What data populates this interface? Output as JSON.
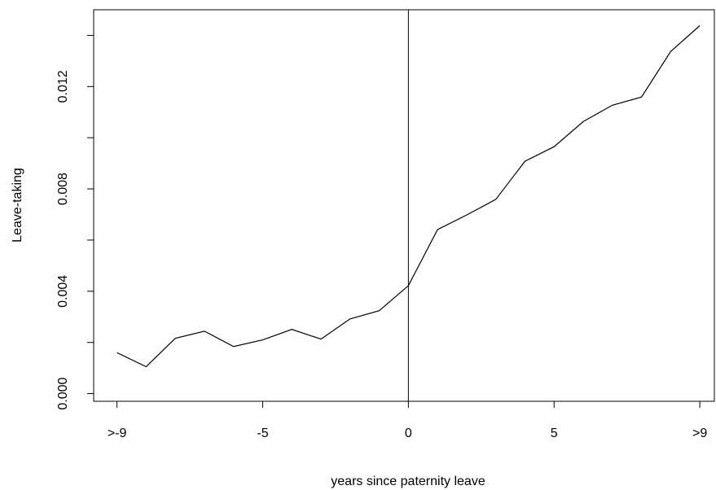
{
  "chart_data": {
    "type": "line",
    "x_label": "years since paternity leave",
    "y_label": "Leave-taking",
    "x": [
      -10,
      -9,
      -8,
      -7,
      -6,
      -5,
      -4,
      -3,
      -2,
      -1,
      0,
      1,
      2,
      3,
      4,
      5,
      6,
      7,
      8,
      9,
      10
    ],
    "values": [
      0.0016,
      0.00105,
      0.00216,
      0.00244,
      0.00184,
      0.0021,
      0.00251,
      0.00213,
      0.00292,
      0.00324,
      0.00422,
      0.00641,
      0.00698,
      0.00759,
      0.00908,
      0.00965,
      0.01063,
      0.01127,
      0.01159,
      0.01337,
      0.01438
    ],
    "color": "#000000",
    "xlim": [
      -10.8,
      10.5
    ],
    "ylim": [
      -0.0003,
      0.015
    ],
    "xticks": [
      {
        "value": -10,
        "label": ">-9"
      },
      -5,
      0,
      5,
      {
        "value": 10,
        "label": ">9"
      }
    ],
    "yticks": [
      {
        "value": 0,
        "label": "0.000"
      },
      0.004,
      0.008,
      0.012
    ],
    "minor_yticks": [
      0.002,
      0.006,
      0.01,
      0.014
    ],
    "vline": 0,
    "grid": false
  }
}
